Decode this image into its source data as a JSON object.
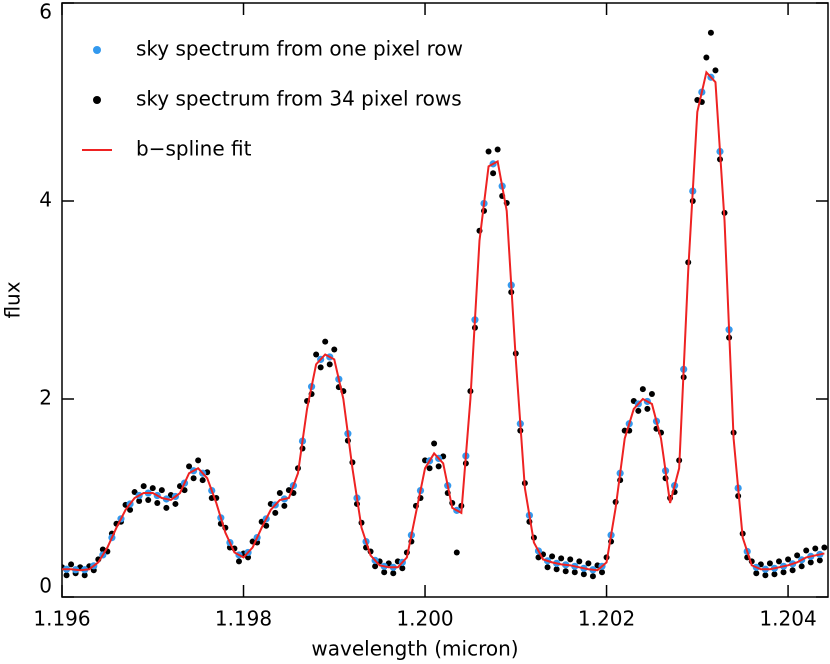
{
  "chart_data": {
    "type": "scatter",
    "xlabel": "wavelength (micron)",
    "ylabel": "flux",
    "xlim": [
      1.196,
      1.20444
    ],
    "ylim": [
      0,
      6
    ],
    "xticks": [
      1.196,
      1.198,
      {
        "value": 1.2,
        "label": "1.200"
      },
      1.202,
      1.204
    ],
    "yticks": [
      0,
      2,
      4,
      6
    ],
    "legend": "upper left",
    "series": [
      {
        "name": "sky spectrum from 34 pixel rows",
        "color": "#000000",
        "style": "points",
        "x": [
          1.196,
          1.19605,
          1.1961,
          1.19615,
          1.1962,
          1.19625,
          1.1963,
          1.19635,
          1.1964,
          1.19645,
          1.1965,
          1.19655,
          1.1966,
          1.19665,
          1.1967,
          1.19675,
          1.1968,
          1.19685,
          1.1969,
          1.19695,
          1.197,
          1.19705,
          1.1971,
          1.19715,
          1.1972,
          1.19725,
          1.1973,
          1.19735,
          1.1974,
          1.19745,
          1.1975,
          1.19755,
          1.1976,
          1.19765,
          1.1977,
          1.19775,
          1.1978,
          1.19785,
          1.1979,
          1.19795,
          1.198,
          1.19805,
          1.1981,
          1.19815,
          1.1982,
          1.19825,
          1.1983,
          1.19835,
          1.1984,
          1.19845,
          1.1985,
          1.19855,
          1.1986,
          1.19865,
          1.1987,
          1.19875,
          1.1988,
          1.19885,
          1.1989,
          1.19895,
          1.199,
          1.19905,
          1.1991,
          1.19915,
          1.1992,
          1.19925,
          1.1993,
          1.19935,
          1.1994,
          1.19945,
          1.1995,
          1.19955,
          1.1996,
          1.19965,
          1.1997,
          1.19975,
          1.1998,
          1.19985,
          1.1999,
          1.19995,
          1.2,
          1.20005,
          1.2001,
          1.20015,
          1.2002,
          1.20025,
          1.2003,
          1.20035,
          1.2004,
          1.20045,
          1.2005,
          1.20055,
          1.2006,
          1.20065,
          1.2007,
          1.20075,
          1.2008,
          1.20085,
          1.2009,
          1.20095,
          1.201,
          1.20105,
          1.2011,
          1.20115,
          1.2012,
          1.20125,
          1.2013,
          1.20135,
          1.2014,
          1.20145,
          1.2015,
          1.20155,
          1.2016,
          1.20165,
          1.2017,
          1.20175,
          1.2018,
          1.20185,
          1.2019,
          1.20195,
          1.202,
          1.20205,
          1.2021,
          1.20215,
          1.2022,
          1.20225,
          1.2023,
          1.20235,
          1.2024,
          1.20245,
          1.2025,
          1.20255,
          1.2026,
          1.20265,
          1.2027,
          1.20275,
          1.2028,
          1.20285,
          1.2029,
          1.20295,
          1.203,
          1.20305,
          1.2031,
          1.20315,
          1.2032,
          1.20325,
          1.2033,
          1.20335,
          1.2034,
          1.20345,
          1.2035,
          1.20355,
          1.2036,
          1.20365,
          1.2037,
          1.20375,
          1.2038,
          1.20385,
          1.2039,
          1.20395,
          1.204,
          1.20405,
          1.2041,
          1.20415,
          1.2042,
          1.20425,
          1.2043,
          1.20435,
          1.2044
        ],
        "values": [
          0.3,
          0.22,
          0.33,
          0.24,
          0.3,
          0.22,
          0.31,
          0.27,
          0.38,
          0.48,
          0.46,
          0.64,
          0.74,
          0.76,
          0.93,
          0.88,
          1.06,
          0.97,
          1.12,
          0.98,
          1.1,
          0.95,
          1.08,
          0.9,
          1.03,
          0.94,
          1.12,
          1.08,
          1.32,
          1.2,
          1.38,
          1.18,
          1.26,
          1.0,
          1.0,
          0.74,
          0.7,
          0.5,
          0.49,
          0.36,
          0.44,
          0.4,
          0.56,
          0.55,
          0.76,
          0.72,
          0.94,
          0.85,
          1.05,
          0.92,
          1.08,
          1.05,
          1.3,
          1.5,
          1.98,
          2.05,
          2.45,
          2.32,
          2.58,
          2.35,
          2.5,
          2.12,
          2.08,
          1.58,
          1.36,
          0.94,
          0.75,
          0.5,
          0.46,
          0.31,
          0.36,
          0.25,
          0.34,
          0.24,
          0.36,
          0.29,
          0.45,
          0.56,
          0.92,
          1.0,
          1.38,
          1.3,
          1.55,
          1.32,
          1.42,
          1.05,
          0.95,
          0.45,
          0.92,
          1.35,
          2.08,
          2.72,
          3.7,
          3.9,
          4.5,
          4.28,
          4.52,
          4.05,
          3.98,
          3.08,
          2.46,
          1.68,
          1.15,
          0.76,
          0.6,
          0.4,
          0.43,
          0.3,
          0.41,
          0.28,
          0.39,
          0.26,
          0.38,
          0.25,
          0.36,
          0.23,
          0.34,
          0.21,
          0.32,
          0.25,
          0.4,
          0.56,
          0.96,
          1.18,
          1.68,
          1.68,
          1.98,
          1.88,
          2.1,
          1.9,
          2.05,
          1.7,
          1.66,
          1.2,
          1.0,
          1.06,
          1.38,
          2.22,
          3.38,
          4.0,
          5.02,
          5.0,
          5.45,
          5.7,
          5.32,
          4.42,
          3.88,
          2.62,
          1.66,
          1.02,
          0.64,
          0.4,
          0.36,
          0.24,
          0.33,
          0.22,
          0.34,
          0.23,
          0.36,
          0.25,
          0.38,
          0.27,
          0.42,
          0.31,
          0.47,
          0.35,
          0.49,
          0.37,
          0.5
        ]
      },
      {
        "name": "sky spectrum from one pixel row",
        "color": "#3399ee",
        "style": "points",
        "x": [
          1.19605,
          1.19615,
          1.19625,
          1.19635,
          1.19645,
          1.19655,
          1.19665,
          1.19675,
          1.19685,
          1.19695,
          1.19705,
          1.19715,
          1.19725,
          1.19735,
          1.19745,
          1.19755,
          1.19765,
          1.19775,
          1.19785,
          1.19795,
          1.19805,
          1.19815,
          1.19825,
          1.19835,
          1.19845,
          1.19855,
          1.19865,
          1.19875,
          1.19885,
          1.19895,
          1.19905,
          1.19915,
          1.19925,
          1.19935,
          1.19945,
          1.19955,
          1.19965,
          1.19975,
          1.19985,
          1.19995,
          1.20005,
          1.20015,
          1.20025,
          1.20035,
          1.20045,
          1.20055,
          1.20065,
          1.20075,
          1.20085,
          1.20095,
          1.20105,
          1.20115,
          1.20125,
          1.20135,
          1.20145,
          1.20155,
          1.20165,
          1.20175,
          1.20185,
          1.20195,
          1.20205,
          1.20215,
          1.20225,
          1.20235,
          1.20245,
          1.20255,
          1.20265,
          1.20275,
          1.20285,
          1.20295,
          1.20305,
          1.20315,
          1.20325,
          1.20335,
          1.20345,
          1.20355,
          1.20365,
          1.20375,
          1.20385,
          1.20395,
          1.20405,
          1.20415,
          1.20425,
          1.20435
        ],
        "values": [
          0.28,
          0.275,
          0.275,
          0.315,
          0.425,
          0.6,
          0.79,
          0.94,
          1.025,
          1.05,
          1.025,
          0.99,
          1.015,
          1.15,
          1.275,
          1.25,
          1.075,
          0.8,
          0.55,
          0.425,
          0.45,
          0.6,
          0.79,
          0.93,
          0.99,
          1.125,
          1.575,
          2.125,
          2.4,
          2.425,
          2.2,
          1.65,
          1.0,
          0.56,
          0.37,
          0.31,
          0.3,
          0.35,
          0.625,
          1.075,
          1.375,
          1.4,
          1.125,
          0.875,
          1.425,
          2.8,
          3.975,
          4.375,
          4.15,
          3.15,
          1.75,
          0.825,
          0.465,
          0.365,
          0.34,
          0.325,
          0.31,
          0.29,
          0.275,
          0.31,
          0.625,
          1.25,
          1.75,
          1.95,
          1.975,
          1.775,
          1.275,
          1.125,
          2.3,
          4.1,
          5.1,
          5.25,
          4.5,
          2.7,
          1.1,
          0.46,
          0.3,
          0.28,
          0.29,
          0.31,
          0.335,
          0.375,
          0.41,
          0.43
        ]
      },
      {
        "name": "b−spline fit",
        "color": "#ee2222",
        "style": "line",
        "x": [
          1.196,
          1.1961,
          1.1962,
          1.1963,
          1.1964,
          1.1965,
          1.1966,
          1.1967,
          1.1968,
          1.1969,
          1.197,
          1.1971,
          1.1972,
          1.1973,
          1.1974,
          1.1975,
          1.1976,
          1.1977,
          1.1978,
          1.1979,
          1.198,
          1.1981,
          1.1982,
          1.1983,
          1.1984,
          1.1985,
          1.1986,
          1.1987,
          1.1988,
          1.1989,
          1.199,
          1.1991,
          1.1992,
          1.1993,
          1.1994,
          1.1995,
          1.1996,
          1.1997,
          1.1998,
          1.1999,
          1.2,
          1.2001,
          1.2002,
          1.2003,
          1.2004,
          1.2005,
          1.2006,
          1.2007,
          1.2008,
          1.2009,
          1.201,
          1.2011,
          1.2012,
          1.2013,
          1.2014,
          1.2015,
          1.2016,
          1.2017,
          1.2018,
          1.2019,
          1.202,
          1.2021,
          1.2022,
          1.2023,
          1.2024,
          1.2025,
          1.2026,
          1.2027,
          1.2028,
          1.2029,
          1.203,
          1.2031,
          1.2032,
          1.2033,
          1.2034,
          1.2035,
          1.2036,
          1.2037,
          1.2038,
          1.2039,
          1.204,
          1.2041,
          1.2042,
          1.2043,
          1.2044
        ],
        "values": [
          0.28,
          0.28,
          0.27,
          0.28,
          0.35,
          0.5,
          0.7,
          0.88,
          1.0,
          1.05,
          1.05,
          1.0,
          0.98,
          1.05,
          1.25,
          1.3,
          1.2,
          0.95,
          0.65,
          0.45,
          0.4,
          0.5,
          0.7,
          0.88,
          0.98,
          1.0,
          1.25,
          1.9,
          2.35,
          2.45,
          2.4,
          2.0,
          1.3,
          0.7,
          0.42,
          0.32,
          0.3,
          0.3,
          0.4,
          0.85,
          1.3,
          1.45,
          1.35,
          0.9,
          0.85,
          2.0,
          3.6,
          4.35,
          4.4,
          3.9,
          2.4,
          1.1,
          0.55,
          0.38,
          0.35,
          0.33,
          0.32,
          0.3,
          0.28,
          0.27,
          0.35,
          0.9,
          1.6,
          1.9,
          2.0,
          1.95,
          1.6,
          0.95,
          1.3,
          3.3,
          4.9,
          5.3,
          5.2,
          3.8,
          1.6,
          0.6,
          0.32,
          0.28,
          0.28,
          0.3,
          0.32,
          0.35,
          0.4,
          0.42,
          0.44
        ]
      }
    ]
  }
}
